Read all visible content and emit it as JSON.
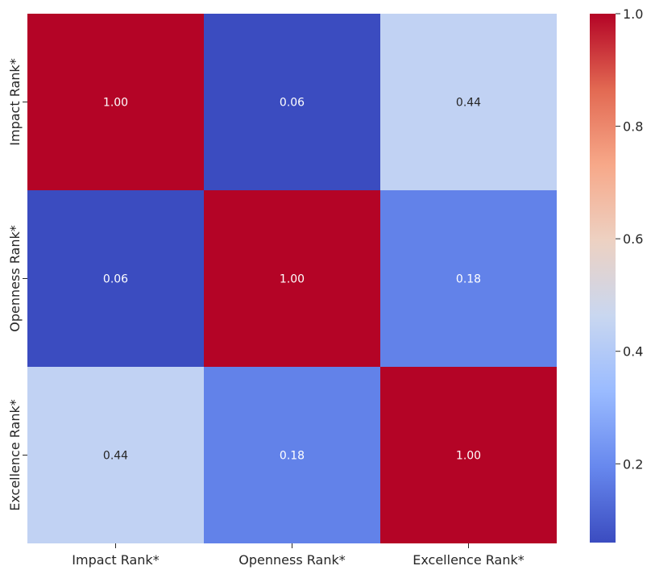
{
  "chart_data": {
    "type": "heatmap",
    "title": "",
    "xlabel": "",
    "ylabel": "",
    "x_categories": [
      "Impact Rank*",
      "Openness Rank*",
      "Excellence Rank*"
    ],
    "y_categories": [
      "Impact Rank*",
      "Openness Rank*",
      "Excellence Rank*"
    ],
    "values": [
      [
        1.0,
        0.06,
        0.44
      ],
      [
        0.06,
        1.0,
        0.18
      ],
      [
        0.44,
        0.18,
        1.0
      ]
    ],
    "value_format": "0.00",
    "annotated": true,
    "colormap": "coolwarm",
    "vmin": 0.06,
    "vmax": 1.0,
    "colorbar_ticks": [
      0.2,
      0.4,
      0.6,
      0.8,
      1.0
    ],
    "colorbar_tick_labels": [
      "0.2",
      "0.4",
      "0.6",
      "0.8",
      "1.0"
    ],
    "colorbar_position": "right",
    "grid": false
  },
  "colors": {
    "coolwarm_stops": [
      "#3b4cc0",
      "#6788ee",
      "#9abbff",
      "#c9d7f0",
      "#edd1c2",
      "#f7a889",
      "#e26952",
      "#b40426"
    ],
    "text_dark": "#262626",
    "text_light": "#ffffff"
  }
}
